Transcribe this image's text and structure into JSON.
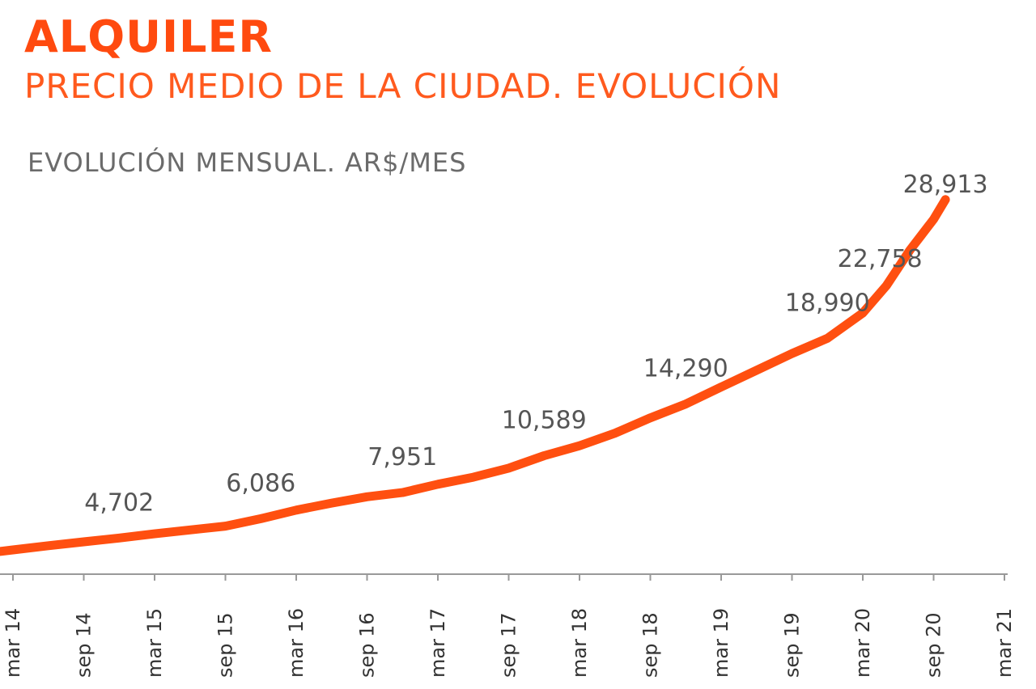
{
  "header": {
    "title": "ALQUILER",
    "subtitle": "PRECIO MEDIO DE LA CIUDAD. EVOLUCIÓN",
    "unit": "EVOLUCIÓN MENSUAL. AR$/MES"
  },
  "colors": {
    "line": "#ff4f10",
    "axis": "#999999",
    "label": "#555555"
  },
  "chart_data": {
    "type": "line",
    "title": "PRECIO MEDIO DE LA CIUDAD. EVOLUCIÓN",
    "ylabel": "EVOLUCIÓN MENSUAL. AR$/MES",
    "xlabel": "",
    "grid": false,
    "ylim": [
      2000,
      30000
    ],
    "x_ticks": [
      "mar 14",
      "sep 14",
      "mar 15",
      "sep 15",
      "mar 16",
      "sep 16",
      "mar 17",
      "sep 17",
      "mar 18",
      "sep 18",
      "mar 19",
      "sep 19",
      "mar 20",
      "sep 20",
      "mar 21"
    ],
    "series": [
      {
        "x": [
          "2014-03",
          "2014-06",
          "2014-09",
          "2014-12",
          "2015-03",
          "2015-06",
          "2015-09",
          "2015-12",
          "2016-03",
          "2016-06",
          "2016-09",
          "2016-12",
          "2017-03",
          "2017-06",
          "2017-09",
          "2017-12",
          "2018-03",
          "2018-06",
          "2018-09",
          "2018-12",
          "2019-03",
          "2019-06",
          "2019-09",
          "2019-12",
          "2020-03",
          "2020-05",
          "2020-07",
          "2020-09",
          "2020-10"
        ],
        "values": [
          3850,
          4150,
          4430,
          4702,
          5000,
          5280,
          5550,
          6086,
          6700,
          7200,
          7650,
          7951,
          8550,
          9050,
          9700,
          10589,
          11300,
          12200,
          13300,
          14290,
          15500,
          16700,
          17900,
          18990,
          20800,
          22758,
          25300,
          27500,
          28913
        ]
      }
    ],
    "data_labels": [
      {
        "x": "2014-12",
        "value": 4702,
        "label": "4,702"
      },
      {
        "x": "2015-12",
        "value": 6086,
        "label": "6,086"
      },
      {
        "x": "2016-12",
        "value": 7951,
        "label": "7,951"
      },
      {
        "x": "2017-12",
        "value": 10589,
        "label": "10,589"
      },
      {
        "x": "2018-12",
        "value": 14290,
        "label": "14,290"
      },
      {
        "x": "2019-12",
        "value": 18990,
        "label": "18,990"
      },
      {
        "x": "2020-05",
        "value": 22758,
        "label": "22,758"
      },
      {
        "x": "2020-10",
        "value": 28913,
        "label": "28,913"
      }
    ]
  }
}
